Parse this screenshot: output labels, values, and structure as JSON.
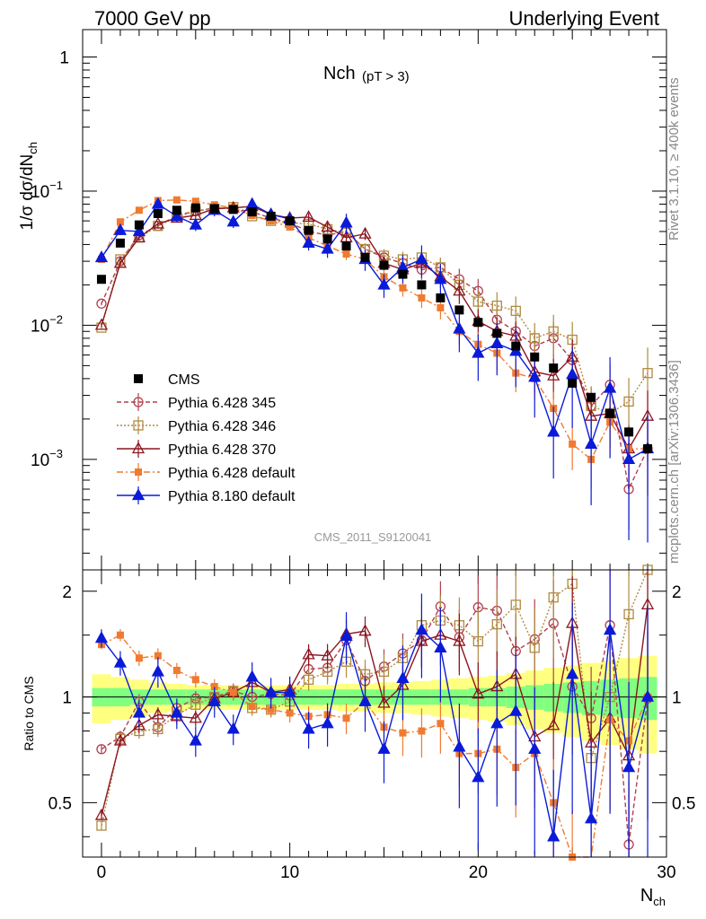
{
  "header": {
    "left": "7000 GeV pp",
    "right": "Underlying Event"
  },
  "side_labels": {
    "rivet": "Rivet 3.1.10, ≥ 400k events",
    "mcplots": "mcplots.cern.ch [arXiv:1306.3436]"
  },
  "plot_title": {
    "main": "Nch",
    "sub": "(pT >  3)"
  },
  "watermark": "CMS_2011_S9120041",
  "chart_data": {
    "type": "scatter",
    "x_label": "N",
    "x_label_sub": "ch",
    "xlim": [
      -1,
      30
    ],
    "x_ticks": [
      "0",
      "10",
      "20",
      "30"
    ],
    "top_panel": {
      "y_label": "1/σ dσ/dN",
      "y_label_sub": "ch",
      "y_scale": "log",
      "ylim": [
        0.00015,
        1.6
      ],
      "y_ticks": [
        {
          "base": "1",
          "exp": ""
        },
        {
          "base": "10",
          "exp": "−1"
        },
        {
          "base": "10",
          "exp": "−2"
        },
        {
          "base": "10",
          "exp": "−3"
        }
      ]
    },
    "bottom_panel": {
      "y_label": "Ratio to CMS",
      "ylim": [
        0.35,
        2.3
      ],
      "y_ticks": [
        "0.5",
        "1",
        "2"
      ]
    },
    "colors": {
      "cms": "#000000",
      "p345": "#b04050",
      "p346": "#b08a40",
      "p370": "#8b1520",
      "pdef": "#f07a30",
      "p8": "#0a1ad8",
      "band_inner": "#80ff80",
      "band_outer": "#ffff80"
    },
    "legend": {
      "placement": "lower-left",
      "entries": [
        {
          "key": "cms",
          "label": "CMS"
        },
        {
          "key": "p345",
          "label": "Pythia 6.428 345"
        },
        {
          "key": "p346",
          "label": "Pythia 6.428 346"
        },
        {
          "key": "p370",
          "label": "Pythia 6.428 370"
        },
        {
          "key": "pdef",
          "label": "Pythia 6.428 default"
        },
        {
          "key": "p8",
          "label": "Pythia 8.180 default"
        }
      ]
    },
    "x": [
      0,
      1,
      2,
      3,
      4,
      5,
      6,
      7,
      8,
      9,
      10,
      11,
      12,
      13,
      14,
      15,
      16,
      17,
      18,
      19,
      20,
      21,
      22,
      23,
      24,
      25,
      26,
      27,
      28,
      29
    ],
    "cms": [
      0.022,
      0.041,
      0.056,
      0.068,
      0.072,
      0.075,
      0.074,
      0.073,
      0.07,
      0.065,
      0.06,
      0.051,
      0.044,
      0.039,
      0.032,
      0.028,
      0.024,
      0.02,
      0.016,
      0.013,
      0.0105,
      0.0087,
      0.007,
      0.0058,
      0.0048,
      0.0037,
      0.0029,
      0.0022,
      0.0016,
      0.0012
    ],
    "cms_band": {
      "inner": [
        0.06,
        0.06,
        0.05,
        0.05,
        0.05,
        0.05,
        0.05,
        0.05,
        0.05,
        0.05,
        0.05,
        0.05,
        0.05,
        0.05,
        0.05,
        0.05,
        0.05,
        0.05,
        0.05,
        0.05,
        0.06,
        0.06,
        0.07,
        0.08,
        0.09,
        0.1,
        0.11,
        0.12,
        0.13,
        0.14
      ],
      "outer": [
        0.16,
        0.14,
        0.12,
        0.1,
        0.09,
        0.08,
        0.08,
        0.08,
        0.08,
        0.08,
        0.08,
        0.08,
        0.08,
        0.09,
        0.09,
        0.1,
        0.1,
        0.11,
        0.12,
        0.13,
        0.14,
        0.15,
        0.17,
        0.19,
        0.21,
        0.23,
        0.25,
        0.27,
        0.29,
        0.31
      ]
    },
    "series": [
      {
        "key": "p345",
        "name": "Pythia 6.428 345",
        "line": "dashed",
        "marker": "circle-open",
        "values": [
          0.0145,
          0.03,
          0.047,
          0.055,
          0.066,
          0.071,
          0.075,
          0.074,
          0.07,
          0.063,
          0.058,
          0.05,
          0.047,
          0.05,
          0.037,
          0.032,
          0.029,
          0.026,
          0.027,
          0.022,
          0.018,
          0.011,
          0.009,
          0.007,
          0.008,
          0.0055,
          0.0025,
          0.0036,
          0.0006,
          0.0012
        ],
        "ratio": [
          0.71,
          0.77,
          0.97,
          0.82,
          0.93,
          0.99,
          1.0,
          1.04,
          1.0,
          1.02,
          1.01,
          1.2,
          1.21,
          1.45,
          1.11,
          1.22,
          1.33,
          1.45,
          1.81,
          1.48,
          1.8,
          1.76,
          1.35,
          1.46,
          1.62,
          1.07,
          0.87,
          1.6,
          0.38,
          0.99
        ],
        "err": [
          0.03,
          0.04,
          0.05,
          0.05,
          0.05,
          0.05,
          0.05,
          0.05,
          0.05,
          0.05,
          0.06,
          0.07,
          0.08,
          0.1,
          0.1,
          0.12,
          0.14,
          0.16,
          0.18,
          0.2,
          0.23,
          0.26,
          0.28,
          0.3,
          0.33,
          0.36,
          0.4,
          0.45,
          0.5,
          0.55
        ]
      },
      {
        "key": "p346",
        "name": "Pythia 6.428 346",
        "line": "dotted",
        "marker": "square-open",
        "values": [
          0.0096,
          0.031,
          0.045,
          0.055,
          0.064,
          0.071,
          0.074,
          0.076,
          0.065,
          0.06,
          0.058,
          0.057,
          0.052,
          0.049,
          0.037,
          0.033,
          0.031,
          0.032,
          0.027,
          0.02,
          0.015,
          0.014,
          0.0128,
          0.008,
          0.009,
          0.0078,
          0.0025,
          0.0022,
          0.0027,
          0.0044
        ],
        "ratio": [
          0.43,
          0.76,
          0.8,
          0.81,
          0.89,
          0.95,
          1.0,
          1.04,
          0.93,
          0.92,
          0.97,
          1.12,
          1.18,
          1.26,
          1.16,
          1.18,
          1.29,
          1.6,
          1.65,
          1.6,
          1.44,
          1.61,
          1.83,
          1.38,
          1.92,
          2.1,
          0.67,
          1.0,
          1.72,
          2.3
        ],
        "err": [
          0.03,
          0.04,
          0.05,
          0.05,
          0.05,
          0.05,
          0.05,
          0.05,
          0.05,
          0.05,
          0.06,
          0.07,
          0.08,
          0.1,
          0.1,
          0.12,
          0.14,
          0.16,
          0.18,
          0.2,
          0.23,
          0.26,
          0.28,
          0.3,
          0.33,
          0.36,
          0.4,
          0.45,
          0.5,
          0.55
        ]
      },
      {
        "key": "p370",
        "name": "Pythia 6.428 370",
        "line": "solid",
        "marker": "triangle-open",
        "values": [
          0.01,
          0.029,
          0.045,
          0.057,
          0.063,
          0.066,
          0.074,
          0.075,
          0.077,
          0.067,
          0.063,
          0.064,
          0.054,
          0.045,
          0.048,
          0.029,
          0.026,
          0.029,
          0.023,
          0.018,
          0.0107,
          0.009,
          0.0083,
          0.0045,
          0.0042,
          0.0058,
          0.0021,
          0.0022,
          0.0012,
          0.0021
        ],
        "ratio": [
          0.46,
          0.75,
          0.83,
          0.89,
          0.88,
          0.87,
          0.99,
          1.03,
          1.1,
          1.03,
          1.05,
          1.32,
          1.31,
          1.51,
          1.54,
          0.96,
          1.08,
          1.44,
          1.5,
          1.44,
          1.02,
          1.07,
          1.16,
          0.77,
          0.83,
          1.62,
          0.74,
          0.87,
          0.68,
          1.83
        ],
        "err": [
          0.03,
          0.04,
          0.05,
          0.05,
          0.05,
          0.05,
          0.05,
          0.05,
          0.05,
          0.05,
          0.06,
          0.07,
          0.08,
          0.1,
          0.1,
          0.12,
          0.14,
          0.16,
          0.18,
          0.2,
          0.23,
          0.26,
          0.28,
          0.3,
          0.33,
          0.36,
          0.4,
          0.45,
          0.5,
          0.55
        ]
      },
      {
        "key": "pdef",
        "name": "Pythia 6.428 default",
        "line": "dashdot",
        "marker": "square-filled",
        "values": [
          0.031,
          0.059,
          0.072,
          0.085,
          0.086,
          0.084,
          0.079,
          0.075,
          0.066,
          0.06,
          0.054,
          0.045,
          0.039,
          0.034,
          0.031,
          0.023,
          0.019,
          0.016,
          0.0135,
          0.009,
          0.0072,
          0.0062,
          0.0044,
          0.004,
          0.0024,
          0.0013,
          0.001,
          0.0019,
          0.0012,
          0.0012
        ],
        "ratio": [
          1.41,
          1.5,
          1.29,
          1.31,
          1.19,
          1.12,
          1.07,
          1.03,
          0.94,
          0.92,
          0.9,
          0.88,
          0.89,
          0.87,
          0.97,
          0.82,
          0.79,
          0.8,
          0.84,
          0.69,
          0.69,
          0.71,
          0.63,
          0.69,
          0.5,
          0.35,
          0.34,
          0.86,
          0.75,
          1.0
        ],
        "err": [
          0.03,
          0.04,
          0.05,
          0.05,
          0.05,
          0.05,
          0.05,
          0.05,
          0.05,
          0.05,
          0.06,
          0.07,
          0.08,
          0.1,
          0.1,
          0.12,
          0.14,
          0.16,
          0.18,
          0.2,
          0.23,
          0.26,
          0.28,
          0.3,
          0.33,
          0.36,
          0.4,
          0.45,
          0.5,
          0.55
        ]
      },
      {
        "key": "p8",
        "name": "Pythia 8.180 default",
        "line": "solid",
        "marker": "triangle-filled",
        "values": [
          0.032,
          0.051,
          0.05,
          0.08,
          0.065,
          0.056,
          0.072,
          0.059,
          0.08,
          0.067,
          0.062,
          0.041,
          0.037,
          0.058,
          0.031,
          0.02,
          0.027,
          0.031,
          0.022,
          0.0094,
          0.0062,
          0.0073,
          0.0064,
          0.0041,
          0.0016,
          0.0043,
          0.0013,
          0.0034,
          0.001,
          0.0012
        ],
        "ratio": [
          1.47,
          1.25,
          0.9,
          1.18,
          0.9,
          0.75,
          0.97,
          0.81,
          1.14,
          1.03,
          1.03,
          0.81,
          0.84,
          1.49,
          0.97,
          0.71,
          1.13,
          1.55,
          1.38,
          0.72,
          0.59,
          0.84,
          0.91,
          0.71,
          0.4,
          1.16,
          0.45,
          1.55,
          0.63,
          1.0
        ],
        "err": [
          0.06,
          0.08,
          0.09,
          0.1,
          0.1,
          0.1,
          0.1,
          0.1,
          0.1,
          0.1,
          0.11,
          0.12,
          0.14,
          0.17,
          0.18,
          0.2,
          0.24,
          0.27,
          0.3,
          0.33,
          0.38,
          0.42,
          0.46,
          0.5,
          0.55,
          0.6,
          0.65,
          0.7,
          0.75,
          0.8
        ]
      }
    ]
  }
}
